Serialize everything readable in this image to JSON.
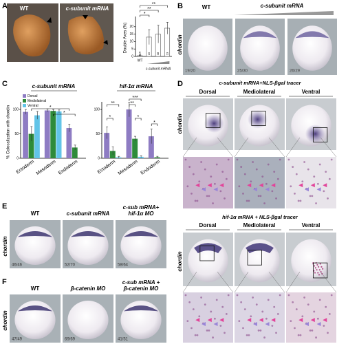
{
  "panel_labels": [
    "A",
    "B",
    "C",
    "D",
    "E",
    "F"
  ],
  "panel_a": {
    "photo_labels": [
      "WT",
      "c-subunit mRNA"
    ]
  },
  "panel_b": {
    "labels": [
      "WT",
      "c-subunit mRNA"
    ],
    "y_label": "chordin",
    "counts": [
      "19/20",
      "25/30",
      "26/29"
    ]
  },
  "panel_d": {
    "top_title": "c-subunit mRNA+NLS-βgal tracer",
    "bottom_title": "hif-1α mRNA + NLS-βgal tracer",
    "columns": [
      "Dorsal",
      "Mediolateral",
      "Ventral"
    ],
    "y_label": "chordin"
  },
  "panel_e": {
    "labels": [
      [
        "WT"
      ],
      [
        "c-subunit mRNA"
      ],
      [
        "c-sub mRNA+",
        "hif-1α MO"
      ]
    ],
    "y_label": "chordin",
    "counts": [
      "46/46",
      "52/70",
      "58/64"
    ]
  },
  "panel_f": {
    "labels": [
      [
        "WT"
      ],
      [
        "β-catenin MO"
      ],
      [
        "c-sub mRNA +",
        "β-catenin MO"
      ]
    ],
    "y_label": "chordin",
    "counts": [
      "47/49",
      "69/69",
      "41/51"
    ]
  },
  "chart_data": [
    {
      "type": "bar",
      "y_label": "Double Axes (%)",
      "categories": [
        "WT",
        null,
        null,
        null
      ],
      "group_label": "c-subunit mRNA",
      "values": [
        0.5,
        13,
        15,
        19
      ],
      "errors": [
        0.5,
        5,
        6,
        4
      ],
      "sample_sizes": [
        "115",
        "15",
        "38",
        "23"
      ],
      "significance": [
        "*",
        "**",
        "**"
      ],
      "color": "#ffffff",
      "ylim": [
        0,
        25
      ],
      "yticks": [
        0,
        5,
        10,
        15,
        20
      ]
    },
    {
      "type": "bar",
      "title": "c-subunit mRNA",
      "y_label": "% Colocalization with chordin",
      "categories": [
        "Ectoderm",
        "Mesoderm",
        "Endoderm"
      ],
      "series": [
        {
          "name": "Dorsal",
          "color": "#8e7cc3",
          "values": [
            95,
            98,
            62
          ],
          "errors": [
            5,
            3,
            8
          ]
        },
        {
          "name": "Mediolateral",
          "color": "#2e8b3a",
          "values": [
            50,
            97,
            22
          ],
          "errors": [
            15,
            3,
            5
          ]
        },
        {
          "name": "Ventral",
          "color": "#62c4e8",
          "values": [
            88,
            96,
            null
          ],
          "errors": [
            8,
            3,
            null
          ]
        }
      ],
      "significance": [
        "*",
        "*"
      ],
      "legend": "upper left",
      "ylim": [
        0,
        110
      ],
      "yticks": [
        0,
        50,
        100
      ]
    },
    {
      "type": "bar",
      "title": "hif-1α mRNA",
      "categories": [
        "Ectoderm",
        "Mesoderm",
        "Endoderm"
      ],
      "series": [
        {
          "color": "#8e7cc3",
          "values": [
            52,
            100,
            45
          ],
          "errors": [
            12,
            15,
            15
          ]
        },
        {
          "color": "#2e8b3a",
          "values": [
            15,
            40,
            2
          ],
          "errors": [
            8,
            5,
            2
          ]
        },
        {
          "color": "#62c4e8",
          "values": [
            2,
            3,
            null
          ],
          "errors": [
            2,
            2,
            null
          ]
        }
      ],
      "significance": [
        "**",
        "*",
        "**",
        "***",
        "*",
        "*"
      ],
      "ylim": [
        0,
        110
      ],
      "yticks": [
        0,
        50,
        100
      ]
    }
  ]
}
